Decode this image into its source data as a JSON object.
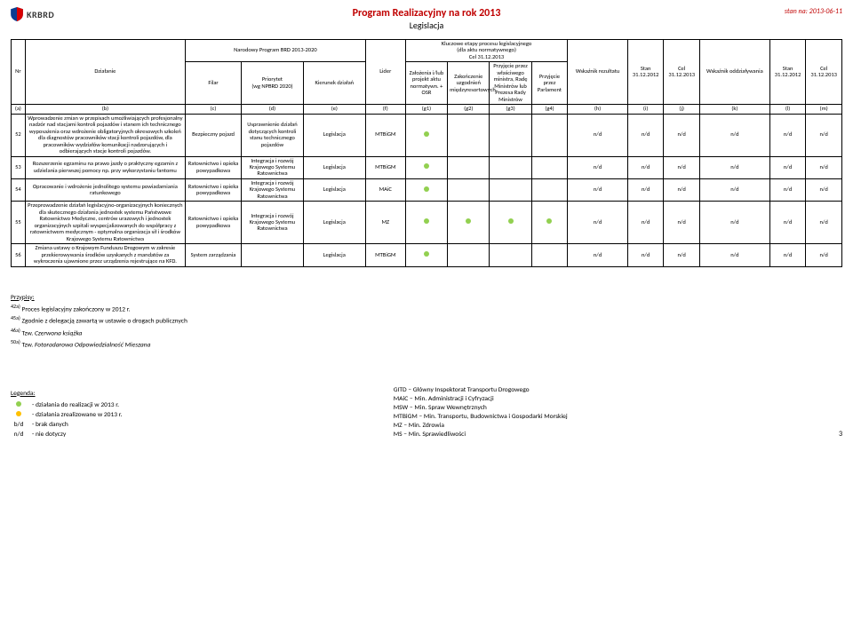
{
  "page": {
    "logo_text": "KRBRD",
    "title": "Program Realizacyjny na rok 2013",
    "subtitle": "Legislacja",
    "stan_na": "stan na: 2013-06-11",
    "page_number": "3"
  },
  "colors": {
    "title": "#c00000",
    "dot_green": "#92d050",
    "dot_yellow": "#ffc000",
    "text": "#000000",
    "border": "#000000"
  },
  "header": {
    "program_group": "Narodowy Program BRD 2013-2020",
    "etapy_group": "Kluczowe etapy procesu legislacyjnego\n(dla aktu normatywnego)\nCel 31.12.2013",
    "nr": "Nr",
    "dzialanie": "Działanie",
    "filar": "Filar",
    "priorytet": "Priorytet\n(wg NPBRD 2020)",
    "kierunek": "Kierunek działań",
    "lider": "Lider",
    "g1": "Założenia i/lub projekt aktu normatywn. + OSR",
    "g2": "Zakończenie uzgodnień międzyresortowych",
    "g3": "Przyjęcie przez właściwego ministra, Radę Ministrów lub Prezesa Rady Ministrów",
    "g4": "Przyjęcie przez Parlament",
    "h": "Wskaźnik rezultatu",
    "i": "Stan 31.12.2012",
    "j": "Cel 31.12.2013",
    "k": "Wskaźnik oddziaływania",
    "l": "Stan 31.12.2012",
    "m": "Cel 31.12.2013",
    "row_letters": [
      "(a)",
      "(b)",
      "(c)",
      "(d)",
      "(e)",
      "(f)",
      "(g1)",
      "(g2)",
      "(g3)",
      "(g4)",
      "(h)",
      "(i)",
      "(j)",
      "(k)",
      "(l)",
      "(m)"
    ]
  },
  "rows": [
    {
      "nr": "52",
      "dzialanie": "Wprowadzenie zmian w przepisach umożliwiających profesjonalny nadzór nad stacjami kontroli pojazdów i stanem ich technicznego wyposażenia oraz wdrożenie obligatoryjnych okresowych szkoleń dla diagnostów pracowników stacji kontroli pojazdów, dla pracowników wydziałów komunikacji nadzorujących i odbierających stacje kontroli pojazdów.",
      "filar": "Bezpieczny pojazd",
      "priorytet": "Usprawnienie działań dotyczących kontroli stanu technicznego pojazdów",
      "kierunek": "Legislacja",
      "lider": "MTBiGM",
      "dots": [
        "green",
        "",
        "",
        ""
      ],
      "vals": [
        "n/d",
        "n/d",
        "n/d",
        "n/d",
        "n/d",
        "n/d"
      ]
    },
    {
      "nr": "53",
      "dzialanie": "Rozszerzenie egzaminu na prawo jazdy o praktyczny egzamin z udzielania pierwszej pomocy np. przy wykorzystaniu fantomu",
      "filar": "Ratownictwo i opieka powypadkowa",
      "priorytet": "Integracja i rozwój Krajowego Systemu Ratownictwa",
      "kierunek": "Legislacja",
      "lider": "MTBiGM",
      "dots": [
        "green",
        "",
        "",
        ""
      ],
      "vals": [
        "n/d",
        "n/d",
        "n/d",
        "n/d",
        "n/d",
        "n/d"
      ]
    },
    {
      "nr": "54",
      "dzialanie": "Opracowanie i wdrożenie jednolitego systemu powiadamiania ratunkowego",
      "filar": "Ratownictwo i opieka powypadkowa",
      "priorytet": "Integracja i rozwój Krajowego Systemu Ratownictwa",
      "kierunek": "Legislacja",
      "lider": "MAiC",
      "dots": [
        "green",
        "",
        "",
        ""
      ],
      "vals": [
        "n/d",
        "n/d",
        "n/d",
        "n/d",
        "n/d",
        "n/d"
      ]
    },
    {
      "nr": "55",
      "dzialanie": "Przeprowadzenie działań legislacyjno-organizacyjnych koniecznych dla skutecznego działania jednostek systemu Państwowe Ratownictwo Medyczne, centrów urazowych i jednostek organizacyjnych szpitali wyspecjalizowanych do współpracy z ratownictwem medycznym - optymalna organizacja sił i środków Krajowego Systemu Ratownictwa",
      "filar": "Ratownictwo i opieka powypadkowa",
      "priorytet": "Integracja i rozwój Krajowego Systemu Ratownictwa",
      "kierunek": "Legislacja",
      "lider": "MZ",
      "dots": [
        "green",
        "green",
        "green",
        "green"
      ],
      "vals": [
        "n/d",
        "n/d",
        "n/d",
        "n/d",
        "n/d",
        "n/d"
      ]
    },
    {
      "nr": "56",
      "dzialanie": "Zmiana ustawy o Krajowym Funduszu Drogowym w zakresie przekierowywania środków uzyskanych z mandatów za wykroczenia ujawnione przez urządzenia rejestrujące na KFD.",
      "filar": "System zarządzania",
      "priorytet": "",
      "kierunek": "Legislacja",
      "lider": "MTBiGM",
      "dots": [
        "green",
        "",
        "",
        ""
      ],
      "vals": [
        "n/d",
        "n/d",
        "n/d",
        "n/d",
        "n/d",
        "n/d"
      ]
    }
  ],
  "footnotes": {
    "header": "Przypisy:",
    "items": [
      {
        "sup": "42a)",
        "text": " Proces legislacyjny zakończony w 2012 r."
      },
      {
        "sup": "45a)",
        "text": " Zgodnie z delegacją zawartą w ustawie o drogach publicznych"
      },
      {
        "sup": "46a)",
        "text": " Tzw. ",
        "em": "Czerwona książka"
      },
      {
        "sup": "50a)",
        "text": " Tzw. ",
        "em": "Fotoradarowa Odpowiedzialność Mieszana"
      }
    ]
  },
  "legend": {
    "header": "Legenda:",
    "items": [
      {
        "type": "dot",
        "color": "#92d050",
        "text": "- działania do realizacji w 2013 r."
      },
      {
        "type": "dot",
        "color": "#ffc000",
        "text": "- działania zrealizowane w 2013 r."
      },
      {
        "type": "lbl",
        "label": "b/d",
        "text": "- brak danych"
      },
      {
        "type": "lbl",
        "label": "n/d",
        "text": "- nie dotyczy"
      }
    ]
  },
  "abbrev": [
    "GITD – Główny Inspektorat Transportu Drogowego",
    "MAiC – Min. Administracji i Cyfryzacji",
    "MSW – Min. Spraw Wewnętrznych",
    "MTBiGM – Min. Transportu, Budownictwa i Gospodarki Morskiej",
    "MZ – Min. Zdrowia",
    "MS – Min. Sprawiedliwości"
  ]
}
